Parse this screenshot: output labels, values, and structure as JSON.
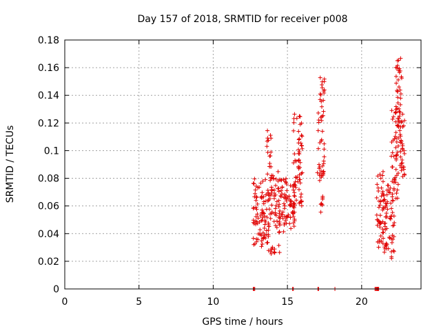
{
  "chart_data": {
    "type": "scatter",
    "title": "Day 157 of 2018, SRMTID for receiver p008",
    "xlabel": "GPS time / hours",
    "ylabel": "SRMTID / TECUs",
    "xlim": [
      0,
      24
    ],
    "ylim": [
      0,
      0.18
    ],
    "xticks": [
      0,
      5,
      10,
      15,
      20
    ],
    "xtick_labels": [
      "0",
      "5",
      "10",
      "15",
      "20"
    ],
    "yticks": [
      0,
      0.02,
      0.04,
      0.06,
      0.08,
      0.1,
      0.12,
      0.14,
      0.16,
      0.18
    ],
    "ytick_labels": [
      "0",
      "0.02",
      "0.04",
      "0.06",
      "0.08",
      "0.1",
      "0.12",
      "0.14",
      "0.16",
      "0.18"
    ],
    "grid": true,
    "marker": "+",
    "color": "#e00000",
    "series": [
      {
        "name": "SRMTID",
        "clusters": [
          {
            "x_range": [
              12.7,
              13.5
            ],
            "y_range": [
              0.03,
              0.08
            ],
            "count": 70
          },
          {
            "x_range": [
              13.5,
              14.5
            ],
            "y_range": [
              0.025,
              0.085
            ],
            "count": 80
          },
          {
            "x_range": [
              13.6,
              13.9
            ],
            "y_range": [
              0.08,
              0.115
            ],
            "count": 15
          },
          {
            "x_range": [
              14.4,
              15.5
            ],
            "y_range": [
              0.04,
              0.08
            ],
            "count": 80
          },
          {
            "x_range": [
              15.3,
              15.5
            ],
            "y_range": [
              0.038,
              0.06
            ],
            "count": 8
          },
          {
            "x_range": [
              15.4,
              16.0
            ],
            "y_range": [
              0.06,
              0.13
            ],
            "count": 40
          },
          {
            "x_range": [
              15.7,
              16.0
            ],
            "y_range": [
              0.075,
              0.12
            ],
            "count": 20
          },
          {
            "x_range": [
              17.0,
              17.5
            ],
            "y_range": [
              0.075,
              0.13
            ],
            "count": 35
          },
          {
            "x_range": [
              17.2,
              17.5
            ],
            "y_range": [
              0.13,
              0.163
            ],
            "count": 15
          },
          {
            "x_range": [
              17.2,
              17.4
            ],
            "y_range": [
              0.055,
              0.07
            ],
            "count": 8
          },
          {
            "x_range": [
              21.0,
              21.5
            ],
            "y_range": [
              0.03,
              0.085
            ],
            "count": 50
          },
          {
            "x_range": [
              21.5,
              22.2
            ],
            "y_range": [
              0.022,
              0.075
            ],
            "count": 60
          },
          {
            "x_range": [
              22.0,
              22.5
            ],
            "y_range": [
              0.06,
              0.13
            ],
            "count": 45
          },
          {
            "x_range": [
              22.3,
              22.7
            ],
            "y_range": [
              0.09,
              0.167
            ],
            "count": 45
          },
          {
            "x_range": [
              22.5,
              22.9
            ],
            "y_range": [
              0.08,
              0.13
            ],
            "count": 30
          }
        ],
        "zero_points_x": [
          12.7,
          12.75,
          12.8,
          15.35,
          15.4,
          17.05,
          17.1,
          18.2,
          20.9,
          20.95,
          21.0,
          21.05,
          21.1,
          21.15
        ]
      }
    ]
  }
}
